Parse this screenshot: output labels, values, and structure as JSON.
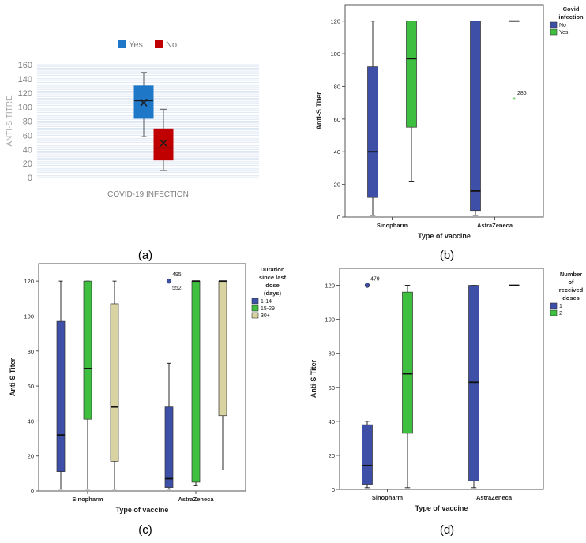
{
  "chart_data": [
    {
      "panel": "(a)",
      "type": "box",
      "xlabel": "COVID-19 INFECTION",
      "ylabel": "ANTI-S TITRE",
      "ylim": [
        0,
        160
      ],
      "yticks": [
        0,
        20,
        40,
        60,
        80,
        100,
        120,
        140,
        160
      ],
      "legend": [
        {
          "name": "Yes",
          "color": "#1f77c8"
        },
        {
          "name": "No",
          "color": "#c00000"
        }
      ],
      "legend_position": "top",
      "grid": true,
      "series": [
        {
          "name": "Yes",
          "color": "#1f77c8",
          "min": 58,
          "q1": 84,
          "median": 109,
          "q3": 130,
          "max": 149,
          "mean": 106
        },
        {
          "name": "No",
          "color": "#c00000",
          "min": 10,
          "q1": 25,
          "median": 42,
          "q3": 69,
          "max": 97,
          "mean": 49
        }
      ]
    },
    {
      "panel": "(b)",
      "type": "box",
      "xlabel": "Type of vaccine",
      "ylabel": "Anti-S Titer",
      "categories": [
        "Sinopharm",
        "AstraZeneca"
      ],
      "ylim": [
        0,
        130
      ],
      "yticks": [
        0,
        20,
        40,
        60,
        80,
        100,
        120
      ],
      "legend_title": "Covid\ninfection",
      "legend_position": "top-right",
      "grid": false,
      "series": [
        {
          "name": "No",
          "color": "#3d4fa6",
          "boxes": [
            {
              "min": 1,
              "q1": 12,
              "median": 40,
              "q3": 92,
              "max": 120
            },
            {
              "min": 1,
              "q1": 4,
              "median": 16,
              "q3": 120,
              "max": 120
            }
          ]
        },
        {
          "name": "Yes",
          "color": "#3fbf3f",
          "boxes": [
            {
              "min": 22,
              "q1": 55,
              "median": 97,
              "q3": 120,
              "max": 120
            },
            {
              "min": 120,
              "q1": 120,
              "median": 120,
              "q3": 120,
              "max": 120
            }
          ]
        }
      ],
      "outliers": [
        {
          "category": "AstraZeneca",
          "series": "Yes",
          "value": 72,
          "label": "286",
          "marker": "*"
        }
      ]
    },
    {
      "panel": "(c)",
      "type": "box",
      "xlabel": "Type of vaccine",
      "ylabel": "Anti-S Titer",
      "categories": [
        "Sinopharm",
        "AstraZeneca"
      ],
      "ylim": [
        0,
        130
      ],
      "yticks": [
        0,
        20,
        40,
        60,
        80,
        100,
        120
      ],
      "legend_title": "Duration\nsince last\ndose\n(days)",
      "legend_position": "top-right",
      "grid": false,
      "series": [
        {
          "name": "1-14",
          "color": "#3d4fa6",
          "boxes": [
            {
              "min": 1,
              "q1": 11,
              "median": 32,
              "q3": 97,
              "max": 120
            },
            {
              "min": 1,
              "q1": 2,
              "median": 7,
              "q3": 48,
              "max": 73
            }
          ]
        },
        {
          "name": "15-29",
          "color": "#3fbf3f",
          "boxes": [
            {
              "min": 1,
              "q1": 41,
              "median": 70,
              "q3": 120,
              "max": 120
            },
            {
              "min": 3,
              "q1": 5,
              "median": 120,
              "q3": 120,
              "max": 120
            }
          ]
        },
        {
          "name": "30+",
          "color": "#d8d3a0",
          "boxes": [
            {
              "min": 1,
              "q1": 17,
              "median": 48,
              "q3": 107,
              "max": 120
            },
            {
              "min": 12,
              "q1": 43,
              "median": 120,
              "q3": 120,
              "max": 120
            }
          ]
        }
      ],
      "outliers": [
        {
          "category": "AstraZeneca",
          "series": "1-14",
          "value": 120,
          "label": "495",
          "marker": "o"
        },
        {
          "category": "AstraZeneca",
          "series": "1-14",
          "value": 120,
          "label": "552",
          "marker": "o"
        }
      ]
    },
    {
      "panel": "(d)",
      "type": "box",
      "xlabel": "Type of vaccine",
      "ylabel": "Anti-S Titer",
      "categories": [
        "Sinopharm",
        "AstraZeneca"
      ],
      "ylim": [
        0,
        130
      ],
      "yticks": [
        0,
        20,
        40,
        60,
        80,
        100,
        120
      ],
      "legend_title": "Number\nof\nreceived\ndoses",
      "legend_position": "top-right",
      "grid": false,
      "series": [
        {
          "name": "1",
          "color": "#3d4fa6",
          "boxes": [
            {
              "min": 1,
              "q1": 3,
              "median": 14,
              "q3": 38,
              "max": 40
            },
            {
              "min": 1,
              "q1": 5,
              "median": 63,
              "q3": 120,
              "max": 120
            }
          ]
        },
        {
          "name": "2",
          "color": "#3fbf3f",
          "boxes": [
            {
              "min": 1,
              "q1": 33,
              "median": 68,
              "q3": 116,
              "max": 120
            },
            {
              "min": 120,
              "q1": 120,
              "median": 120,
              "q3": 120,
              "max": 120
            }
          ]
        }
      ],
      "outliers": [
        {
          "category": "Sinopharm",
          "series": "1",
          "value": 120,
          "label": "479",
          "marker": "o"
        }
      ]
    }
  ]
}
